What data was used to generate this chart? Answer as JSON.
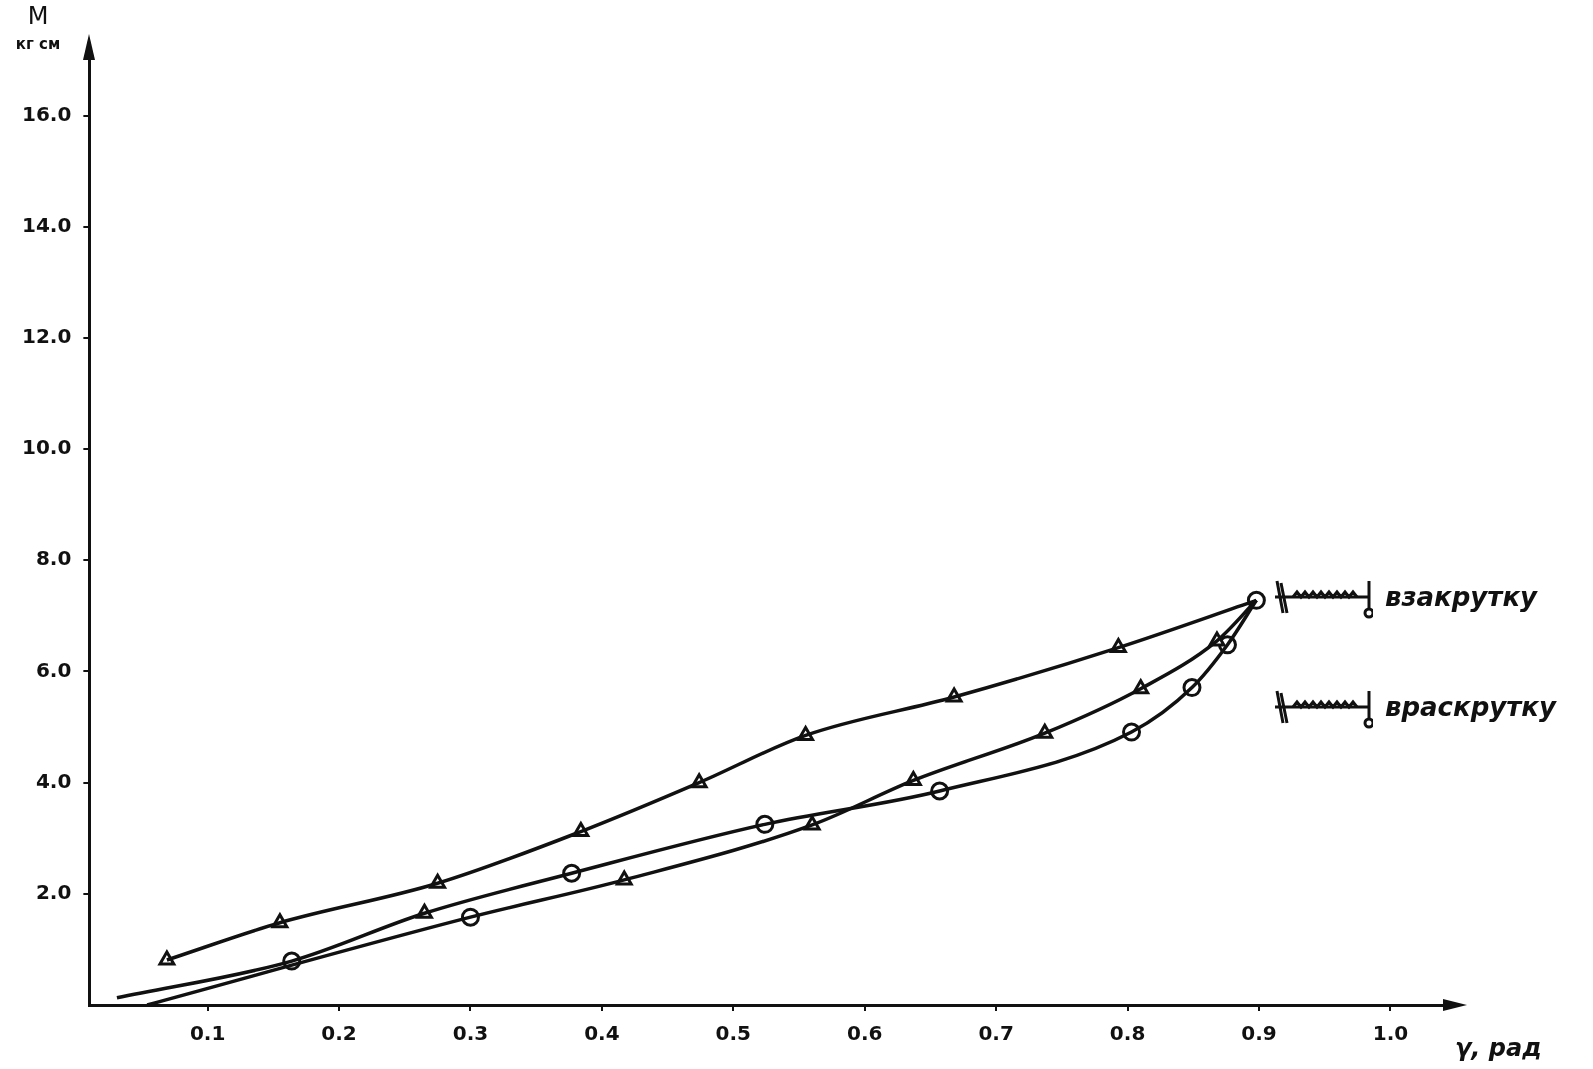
{
  "chart_data": {
    "type": "line",
    "xlabel": "γ, рад",
    "ylabel": "M кг см",
    "xlim": [
      0.01,
      1.04
    ],
    "ylim": [
      0,
      17
    ],
    "xticks": [
      0.1,
      0.2,
      0.3,
      0.4,
      0.5,
      0.6,
      0.7,
      0.8,
      0.9,
      {
        "value": 1,
        "label": "1.0"
      }
    ],
    "yticks": [
      {
        "value": 2,
        "label": "2.0"
      },
      {
        "value": 4,
        "label": "4.0"
      },
      {
        "value": 6,
        "label": "6.0"
      },
      {
        "value": 8,
        "label": "8.0"
      },
      {
        "value": 10,
        "label": "10.0"
      },
      {
        "value": 12,
        "label": "12.0"
      },
      {
        "value": 14,
        "label": "14.0"
      },
      {
        "value": 16,
        "label": "16.0"
      }
    ],
    "grid": false,
    "legend": false,
    "annotations": [
      "взакрутку",
      "враскрутку"
    ],
    "series": [
      {
        "type": "line",
        "color": "#111111",
        "marker": "none",
        "x": [
          0.069,
          0.155,
          0.275,
          0.384,
          0.474,
          0.555,
          0.668,
          0.793,
          0.898
        ],
        "values": [
          0.81,
          1.48,
          2.19,
          3.12,
          4.0,
          4.85,
          5.54,
          6.43,
          7.28
        ]
      },
      {
        "type": "line",
        "color": "#111111",
        "marker": "none",
        "x": [
          0.031,
          0.164,
          0.265,
          0.377,
          0.524,
          0.657,
          0.803,
          0.849,
          0.876,
          0.898
        ],
        "values": [
          0.13,
          0.79,
          1.65,
          2.37,
          3.25,
          3.85,
          4.91,
          5.71,
          6.48,
          7.28
        ]
      },
      {
        "type": "line",
        "color": "#111111",
        "marker": "none",
        "x": [
          0.054,
          0.3,
          0.417,
          0.56,
          0.637,
          0.737,
          0.81,
          0.868,
          0.898
        ],
        "values": [
          0,
          1.58,
          2.25,
          3.24,
          4.04,
          4.89,
          5.69,
          6.55,
          7.28
        ]
      },
      {
        "type": "scatter",
        "color": "#111111",
        "marker": "triangle",
        "x": [
          0.069,
          0.155,
          0.275,
          0.384,
          0.474,
          0.555,
          0.668,
          0.793,
          0.265,
          0.417,
          0.56,
          0.637,
          0.737,
          0.81,
          0.868
        ],
        "values": [
          0.81,
          1.48,
          2.19,
          3.12,
          4.0,
          4.85,
          5.54,
          6.43,
          1.65,
          2.25,
          3.24,
          4.04,
          4.89,
          5.69,
          6.55
        ]
      },
      {
        "type": "scatter",
        "color": "#111111",
        "marker": "circle",
        "x": [
          0.164,
          0.377,
          0.524,
          0.657,
          0.803,
          0.849,
          0.876,
          0.898,
          0.3
        ],
        "values": [
          0.79,
          2.37,
          3.25,
          3.85,
          4.91,
          5.71,
          6.48,
          7.28,
          1.58
        ]
      }
    ]
  }
}
